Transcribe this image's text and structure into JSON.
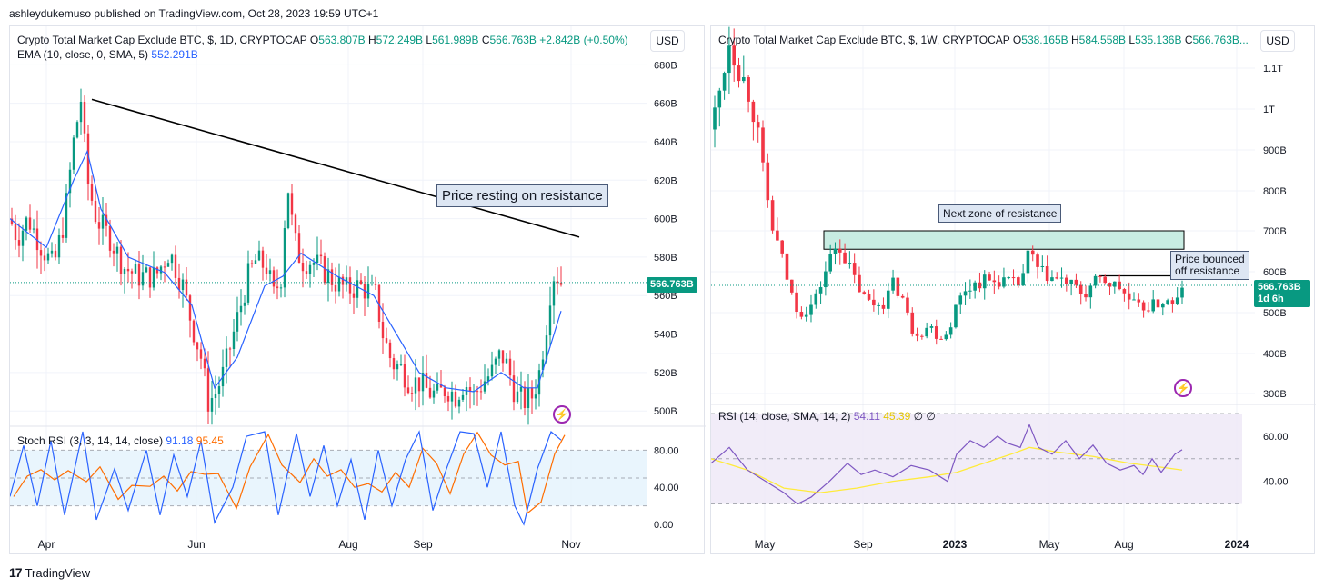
{
  "header": {
    "published": "ashleydukemuso published on TradingView.com, Oct 28, 2023 19:59 UTC+1"
  },
  "footer": {
    "brand": "TradingView"
  },
  "colors": {
    "up": "#089981",
    "down": "#f23645",
    "ema": "#2962ff",
    "stoch_k": "#2962ff",
    "stoch_d": "#ff6d00",
    "rsi": "#7e57c2",
    "rsi_ma": "#ffeb3b",
    "zone_fill": "#c8ece2",
    "grid": "#f0f3fa"
  },
  "left": {
    "title": "Crypto Total Market Cap Exclude BTC, $, 1D, CRYPTOCAP",
    "ohlc": {
      "o_label": "O",
      "o": "563.807B",
      "h_label": "H",
      "h": "572.249B",
      "l_label": "L",
      "l": "561.989B",
      "c_label": "C",
      "c": "566.763B",
      "chg": "+2.842B (+0.50%)"
    },
    "ema_label": "EMA (10, close, 0, SMA, 5)",
    "ema_value": "552.291B",
    "currency": "USD",
    "last_price": "566.763B",
    "annotation": "Price resting on resistance",
    "stoch_label": "Stoch RSI (3, 3, 14, 14, close)",
    "stoch_k": "91.18",
    "stoch_d": "95.45"
  },
  "right": {
    "title": "Crypto Total Market Cap Exclude BTC, $, 1W, CRYPTOCAP",
    "ohlc": {
      "o_label": "O",
      "o": "538.165B",
      "h_label": "H",
      "h": "584.558B",
      "l_label": "L",
      "l": "535.136B",
      "c_label": "C",
      "c": "566.763B..."
    },
    "currency": "USD",
    "last_price": "566.763B",
    "countdown": "1d 6h",
    "annotation_zone": "Next zone of resistance",
    "annotation_bounce_1": "Price bounced",
    "annotation_bounce_2": "off resistance",
    "rsi_label": "RSI (14, close, SMA, 14, 2)",
    "rsi_value": "54.11",
    "rsi_ma_value": "45.39",
    "rsi_extra": "∅  ∅"
  },
  "chart_data": [
    {
      "type": "candlestick",
      "timeframe": "1D",
      "title": "Crypto Total Market Cap Exclude BTC, $, 1D, CRYPTOCAP",
      "x_ticks": [
        "Apr",
        "Jun",
        "Aug",
        "Sep",
        "Nov"
      ],
      "y_ticks": [
        "500B",
        "520B",
        "540B",
        "560B",
        "580B",
        "600B",
        "620B",
        "640B",
        "660B",
        "680B"
      ],
      "ylim": [
        493,
        700
      ],
      "close_path": [
        [
          0,
          600
        ],
        [
          8,
          590
        ],
        [
          20,
          600
        ],
        [
          35,
          585
        ],
        [
          48,
          575
        ],
        [
          60,
          600
        ],
        [
          70,
          640
        ],
        [
          78,
          662
        ],
        [
          85,
          620
        ],
        [
          95,
          600
        ],
        [
          110,
          590
        ],
        [
          125,
          575
        ],
        [
          140,
          570
        ],
        [
          160,
          570
        ],
        [
          175,
          583
        ],
        [
          190,
          565
        ],
        [
          200,
          545
        ],
        [
          210,
          528
        ],
        [
          218,
          505
        ],
        [
          225,
          508
        ],
        [
          235,
          520
        ],
        [
          250,
          548
        ],
        [
          262,
          570
        ],
        [
          270,
          578
        ],
        [
          282,
          575
        ],
        [
          290,
          560
        ],
        [
          298,
          570
        ],
        [
          305,
          620
        ],
        [
          312,
          590
        ],
        [
          320,
          578
        ],
        [
          332,
          578
        ],
        [
          345,
          573
        ],
        [
          355,
          568
        ],
        [
          370,
          563
        ],
        [
          385,
          565
        ],
        [
          395,
          562
        ],
        [
          402,
          560
        ],
        [
          410,
          540
        ],
        [
          420,
          525
        ],
        [
          430,
          522
        ],
        [
          440,
          515
        ],
        [
          450,
          515
        ],
        [
          460,
          510
        ],
        [
          470,
          508
        ],
        [
          480,
          512
        ],
        [
          490,
          508
        ],
        [
          500,
          515
        ],
        [
          510,
          508
        ],
        [
          520,
          515
        ],
        [
          530,
          520
        ],
        [
          540,
          530
        ],
        [
          548,
          522
        ],
        [
          556,
          508
        ],
        [
          565,
          505
        ],
        [
          575,
          508
        ],
        [
          582,
          520
        ],
        [
          590,
          545
        ],
        [
          596,
          570
        ],
        [
          600,
          572
        ],
        [
          606,
          567
        ]
      ],
      "ema_path": [
        [
          0,
          600
        ],
        [
          40,
          585
        ],
        [
          70,
          620
        ],
        [
          85,
          635
        ],
        [
          100,
          605
        ],
        [
          130,
          580
        ],
        [
          170,
          572
        ],
        [
          200,
          555
        ],
        [
          225,
          512
        ],
        [
          250,
          528
        ],
        [
          280,
          565
        ],
        [
          300,
          570
        ],
        [
          320,
          582
        ],
        [
          360,
          570
        ],
        [
          400,
          560
        ],
        [
          425,
          540
        ],
        [
          450,
          520
        ],
        [
          480,
          512
        ],
        [
          510,
          510
        ],
        [
          540,
          520
        ],
        [
          565,
          512
        ],
        [
          580,
          512
        ],
        [
          595,
          535
        ],
        [
          606,
          552
        ]
      ],
      "trendline": [
        [
          78,
          662
        ],
        [
          608,
          589
        ]
      ],
      "stoch_rsi": {
        "label": "Stoch RSI (3, 3, 14, 14, close)",
        "k": 91.18,
        "d": 95.45,
        "y_ticks": [
          "0.00",
          "40.00",
          "80.00"
        ],
        "bands": [
          20,
          80
        ],
        "k_path": [
          [
            0,
            30
          ],
          [
            15,
            85
          ],
          [
            30,
            20
          ],
          [
            45,
            90
          ],
          [
            60,
            10
          ],
          [
            80,
            100
          ],
          [
            95,
            5
          ],
          [
            115,
            60
          ],
          [
            130,
            15
          ],
          [
            150,
            80
          ],
          [
            165,
            10
          ],
          [
            180,
            75
          ],
          [
            195,
            30
          ],
          [
            210,
            90
          ],
          [
            225,
            2
          ],
          [
            245,
            40
          ],
          [
            260,
            95
          ],
          [
            280,
            100
          ],
          [
            295,
            10
          ],
          [
            315,
            98
          ],
          [
            330,
            30
          ],
          [
            345,
            85
          ],
          [
            360,
            20
          ],
          [
            375,
            70
          ],
          [
            390,
            5
          ],
          [
            405,
            80
          ],
          [
            420,
            20
          ],
          [
            435,
            70
          ],
          [
            450,
            100
          ],
          [
            465,
            15
          ],
          [
            480,
            60
          ],
          [
            495,
            100
          ],
          [
            510,
            98
          ],
          [
            525,
            40
          ],
          [
            540,
            100
          ],
          [
            555,
            20
          ],
          [
            565,
            0
          ],
          [
            580,
            60
          ],
          [
            595,
            100
          ],
          [
            606,
            91
          ]
        ]
      }
    },
    {
      "type": "candlestick",
      "timeframe": "1W",
      "title": "Crypto Total Market Cap Exclude BTC, $, 1W, CRYPTOCAP",
      "x_ticks": [
        "May",
        "Sep",
        "2023",
        "May",
        "Aug",
        "2024"
      ],
      "y_ticks": [
        "300B",
        "400B",
        "500B",
        "600B",
        "700B",
        "800B",
        "900B",
        "1T",
        "1.1T"
      ],
      "ylim": [
        280,
        1200
      ],
      "close_path": [
        [
          0,
          950
        ],
        [
          10,
          1050
        ],
        [
          20,
          1170
        ],
        [
          30,
          1100
        ],
        [
          40,
          1050
        ],
        [
          50,
          960
        ],
        [
          60,
          800
        ],
        [
          68,
          700
        ],
        [
          76,
          650
        ],
        [
          84,
          580
        ],
        [
          92,
          520
        ],
        [
          100,
          500
        ],
        [
          108,
          510
        ],
        [
          116,
          540
        ],
        [
          124,
          590
        ],
        [
          132,
          640
        ],
        [
          140,
          670
        ],
        [
          150,
          620
        ],
        [
          160,
          570
        ],
        [
          170,
          530
        ],
        [
          180,
          520
        ],
        [
          190,
          525
        ],
        [
          200,
          570
        ],
        [
          210,
          540
        ],
        [
          220,
          460
        ],
        [
          230,
          450
        ],
        [
          240,
          470
        ],
        [
          250,
          440
        ],
        [
          260,
          450
        ],
        [
          270,
          520
        ],
        [
          280,
          560
        ],
        [
          290,
          570
        ],
        [
          300,
          580
        ],
        [
          310,
          575
        ],
        [
          320,
          580
        ],
        [
          330,
          570
        ],
        [
          340,
          570
        ],
        [
          350,
          650
        ],
        [
          360,
          600
        ],
        [
          370,
          590
        ],
        [
          380,
          580
        ],
        [
          390,
          575
        ],
        [
          400,
          560
        ],
        [
          410,
          540
        ],
        [
          420,
          570
        ],
        [
          430,
          580
        ],
        [
          440,
          570
        ],
        [
          450,
          560
        ],
        [
          460,
          530
        ],
        [
          470,
          510
        ],
        [
          480,
          515
        ],
        [
          490,
          520
        ],
        [
          500,
          530
        ],
        [
          510,
          510
        ],
        [
          518,
          567
        ]
      ],
      "resistance_zone": [
        655,
        700
      ],
      "resistance_line": 590,
      "rsi": {
        "label": "RSI (14, close, SMA, 14, 2)",
        "value": 54.11,
        "ma_value": 45.39,
        "y_ticks": [
          "40.00",
          "60.00"
        ],
        "bands": [
          30,
          70
        ],
        "rsi_path": [
          [
            0,
            48
          ],
          [
            20,
            55
          ],
          [
            40,
            45
          ],
          [
            60,
            40
          ],
          [
            80,
            35
          ],
          [
            95,
            30
          ],
          [
            110,
            33
          ],
          [
            130,
            40
          ],
          [
            150,
            48
          ],
          [
            165,
            43
          ],
          [
            180,
            45
          ],
          [
            200,
            42
          ],
          [
            220,
            47
          ],
          [
            240,
            45
          ],
          [
            260,
            40
          ],
          [
            270,
            52
          ],
          [
            285,
            58
          ],
          [
            300,
            55
          ],
          [
            315,
            60
          ],
          [
            325,
            57
          ],
          [
            340,
            55
          ],
          [
            350,
            65
          ],
          [
            360,
            55
          ],
          [
            375,
            52
          ],
          [
            390,
            58
          ],
          [
            405,
            50
          ],
          [
            420,
            56
          ],
          [
            435,
            48
          ],
          [
            450,
            45
          ],
          [
            465,
            47
          ],
          [
            475,
            43
          ],
          [
            485,
            50
          ],
          [
            495,
            44
          ],
          [
            510,
            52
          ],
          [
            518,
            54
          ]
        ],
        "ma_path": [
          [
            0,
            50
          ],
          [
            40,
            45
          ],
          [
            80,
            37
          ],
          [
            120,
            35
          ],
          [
            160,
            37
          ],
          [
            200,
            40
          ],
          [
            240,
            42
          ],
          [
            270,
            44
          ],
          [
            300,
            48
          ],
          [
            330,
            52
          ],
          [
            350,
            55
          ],
          [
            380,
            53
          ],
          [
            420,
            51
          ],
          [
            460,
            48
          ],
          [
            500,
            46
          ],
          [
            518,
            45
          ]
        ]
      }
    }
  ]
}
